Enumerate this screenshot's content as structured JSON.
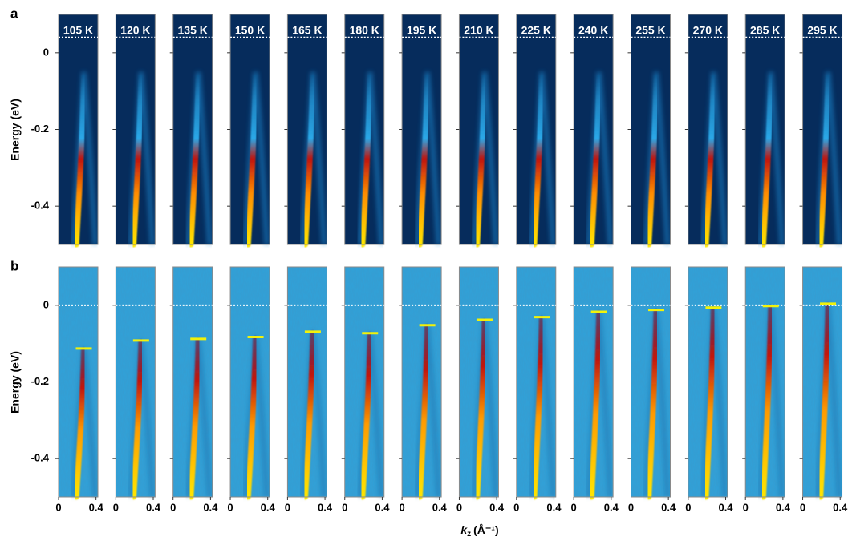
{
  "chart_data": [
    {
      "type": "heatmap",
      "panel_label": "a",
      "ylabel": "Energy (eV)",
      "categories": [
        "105 K",
        "120 K",
        "135 K",
        "150 K",
        "165 K",
        "180 K",
        "195 K",
        "210 K",
        "225 K",
        "240 K",
        "255 K",
        "270 K",
        "285 K",
        "295 K"
      ],
      "ylim": [
        -0.5,
        0.1
      ],
      "yticks": [
        0,
        -0.2,
        -0.4
      ],
      "hline": 0.04
    },
    {
      "type": "heatmap",
      "panel_label": "b",
      "ylabel": "Energy (eV)",
      "xlabel": "k",
      "xlabel_subscript": "z",
      "xlabel_unit": "(Å⁻¹)",
      "marker_color": "#f2f20a",
      "values": [
        -0.113,
        -0.092,
        -0.088,
        -0.083,
        -0.069,
        -0.073,
        -0.052,
        -0.038,
        -0.031,
        -0.017,
        -0.012,
        -0.006,
        -0.002,
        0.004
      ],
      "xlim": [
        0,
        0.42
      ],
      "xticks": [
        0,
        0.4
      ],
      "ylim": [
        -0.5,
        0.1
      ],
      "yticks": [
        0,
        -0.2,
        -0.4
      ],
      "hline": 0
    }
  ]
}
